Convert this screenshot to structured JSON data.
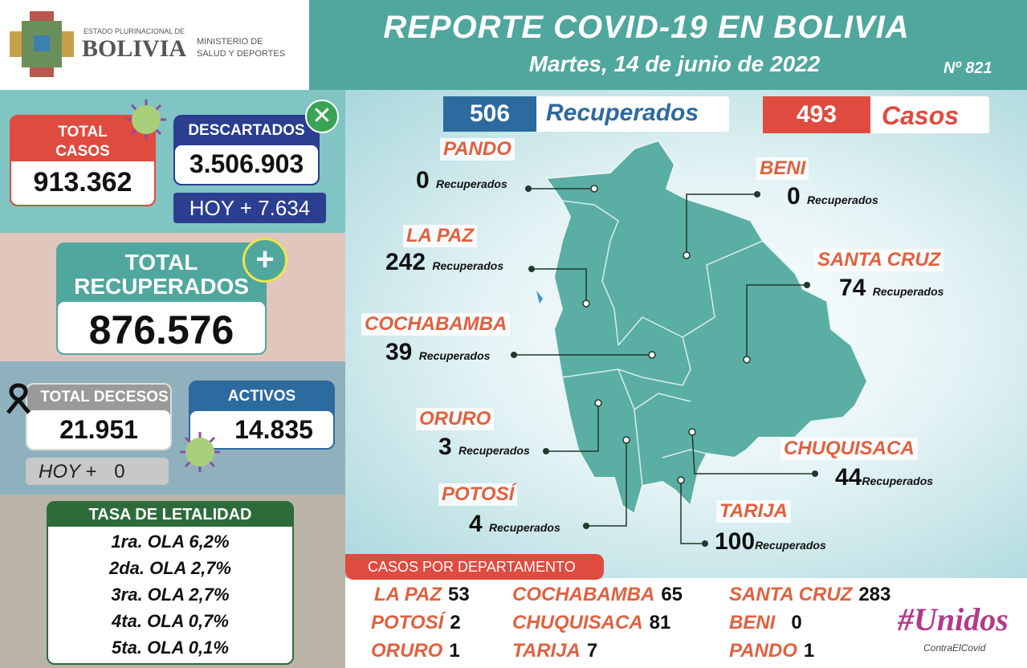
{
  "header": {
    "logo_top": "ESTADO PLURINACIONAL DE",
    "logo_main": "BOLIVIA",
    "ministry_line1": "MINISTERIO DE",
    "ministry_line2": "SALUD Y DEPORTES",
    "title": "REPORTE COVID-19 EN BOLIVIA",
    "date": "Martes, 14 de junio de 2022",
    "number": "Nº 821"
  },
  "total_casos": {
    "label1": "TOTAL",
    "label2": "CASOS",
    "value": "913.362",
    "icon": "virus-icon"
  },
  "descartados": {
    "label": "DESCARTADOS",
    "value": "3.506.903",
    "hoy": "HOY + 7.634",
    "icon": "x-circle-icon"
  },
  "recuperados": {
    "label1": "TOTAL",
    "label2": "RECUPERADOS",
    "value": "876.576",
    "icon": "plus-circle-icon"
  },
  "decesos": {
    "label": "TOTAL DECESOS",
    "value": "21.951",
    "hoy_label": "HOY +",
    "hoy_value": "0",
    "icon": "mourning-ribbon-icon"
  },
  "activos": {
    "label": "ACTIVOS",
    "value": "14.835"
  },
  "letalidad": {
    "title": "TASA DE LETALIDAD",
    "items": [
      "1ra. OLA 6,2%",
      "2da. OLA 2,7%",
      "3ra. OLA 2,7%",
      "4ta. OLA 0,7%",
      "5ta. OLA 0,1%"
    ]
  },
  "map": {
    "recuperados_total": "506",
    "recuperados_label": "Recuperados",
    "casos_total": "493",
    "casos_label": "Casos",
    "departments": [
      {
        "name": "PANDO",
        "value": "0",
        "label": "Recuperados"
      },
      {
        "name": "BENI",
        "value": "0",
        "label": "Recuperados"
      },
      {
        "name": "LA PAZ",
        "value": "242",
        "label": "Recuperados"
      },
      {
        "name": "SANTA CRUZ",
        "value": "74",
        "label": "Recuperados"
      },
      {
        "name": "COCHABAMBA",
        "value": "39",
        "label": "Recuperados"
      },
      {
        "name": "ORURO",
        "value": "3",
        "label": "Recuperados"
      },
      {
        "name": "CHUQUISACA",
        "value": "44",
        "label": "Recuperados"
      },
      {
        "name": "POTOSÍ",
        "value": "4",
        "label": "Recuperados"
      },
      {
        "name": "TARIJA",
        "value": "100",
        "label": "Recuperados"
      }
    ]
  },
  "casos_departamento": {
    "title": "CASOS POR DEPARTAMENTO",
    "items": [
      {
        "name": "LA PAZ",
        "value": "53"
      },
      {
        "name": "POTOSÍ",
        "value": "2"
      },
      {
        "name": "ORURO",
        "value": "1"
      },
      {
        "name": "COCHABAMBA",
        "value": "65"
      },
      {
        "name": "CHUQUISACA",
        "value": "81"
      },
      {
        "name": "TARIJA",
        "value": "7"
      },
      {
        "name": "SANTA CRUZ",
        "value": "283"
      },
      {
        "name": "BENI",
        "value": "0"
      },
      {
        "name": "PANDO",
        "value": "1"
      }
    ]
  },
  "campaign": {
    "hashtag": "#Unidos",
    "sub": "ContraElCovid"
  },
  "colors": {
    "teal": "#4fa79e",
    "red": "#e04b3f",
    "navy": "#2b3e8f",
    "orange": "#e0613f",
    "green_dark": "#2e6b3a"
  }
}
